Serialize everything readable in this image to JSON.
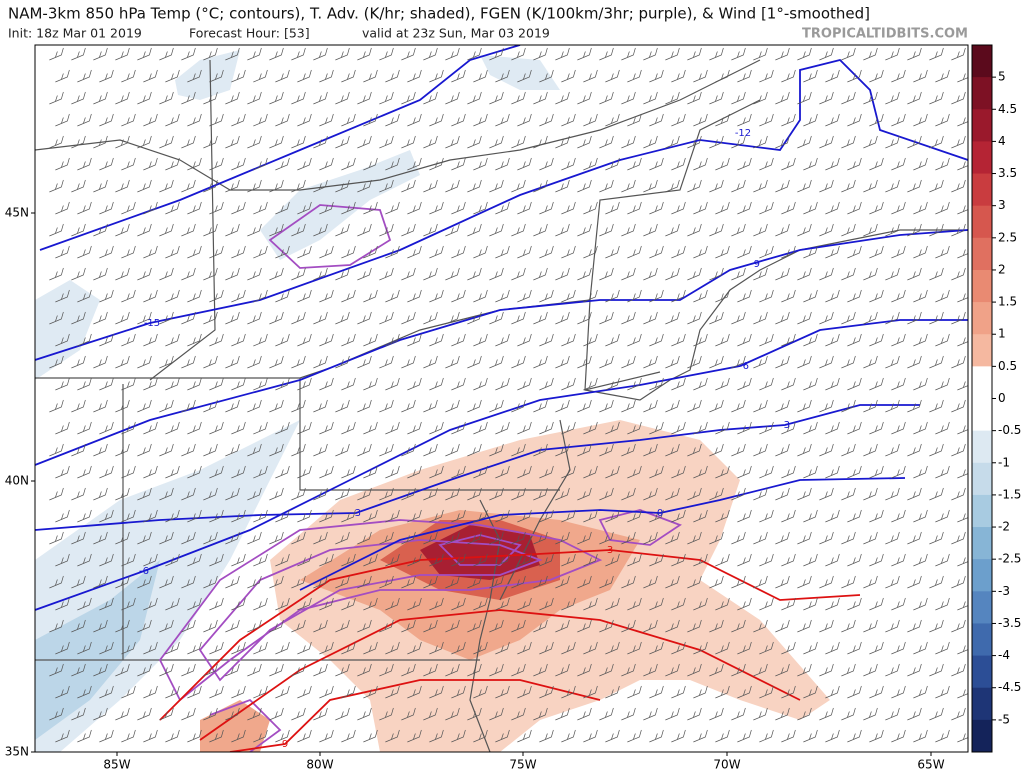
{
  "header": {
    "title": "NAM-3km 850 hPa Temp (°C; contours), T. Adv. (K/hr; shaded), FGEN (K/100km/3hr; purple), & Wind [1°-smoothed]",
    "init": "Init: 18z Mar 01 2019",
    "forecast": "Forecast Hour: [53]",
    "valid": "valid at 23z Sun, Mar 03 2019",
    "watermark": "TROPICALTIDBITS.COM"
  },
  "map": {
    "lat_labels": [
      "45N",
      "40N",
      "35N"
    ],
    "lon_labels": [
      "85W",
      "80W",
      "75W",
      "70W",
      "65W"
    ],
    "contour_labels": [
      "-12",
      "-9",
      "-15",
      "-6",
      "-3",
      "-6",
      "-3",
      "0",
      "3",
      "9"
    ]
  },
  "colorbar": {
    "ticks": [
      5,
      4.5,
      4,
      3.5,
      3,
      2.5,
      2,
      1.5,
      1,
      0.5,
      0,
      -0.5,
      -1,
      -1.5,
      -2,
      -2.5,
      -3,
      -3.5,
      -4,
      -4.5,
      -5
    ],
    "colors": [
      "#5b0a1c",
      "#7d1124",
      "#9a192c",
      "#b52434",
      "#c93c3f",
      "#d6574e",
      "#e07060",
      "#e98a72",
      "#f0a288",
      "#f5b8a0",
      "#ffffff",
      "#ffffff",
      "#dde9f2",
      "#c6dbea",
      "#a8cbe1",
      "#87b5d6",
      "#6c9fcc",
      "#5585bf",
      "#3f6aad",
      "#2c4e96",
      "#1e3576",
      "#14235a"
    ]
  }
}
